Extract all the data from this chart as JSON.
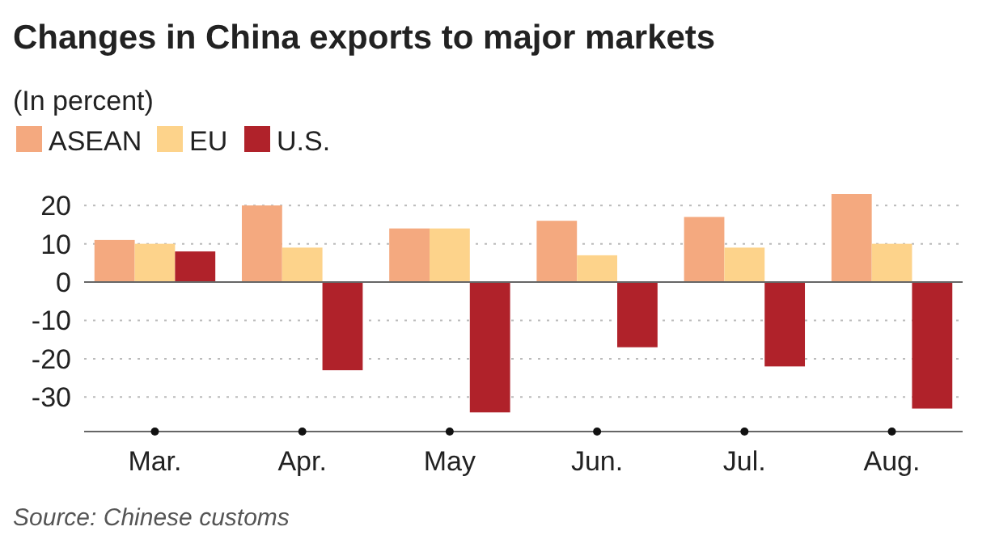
{
  "chart_data": {
    "type": "bar",
    "title": "Changes in China exports to major markets",
    "subtitle": "(In percent)",
    "categories": [
      "Mar.",
      "Apr.",
      "May",
      "Jun.",
      "Jul.",
      "Aug."
    ],
    "series": [
      {
        "name": "ASEAN",
        "color": "#f4a97f",
        "values": [
          11,
          20,
          14,
          16,
          17,
          23
        ]
      },
      {
        "name": "EU",
        "color": "#fdd38b",
        "values": [
          10,
          9,
          14,
          7,
          9,
          10
        ]
      },
      {
        "name": "U.S.",
        "color": "#b0222a",
        "values": [
          8,
          -23,
          -34,
          -17,
          -22,
          -33
        ]
      }
    ],
    "ylim": [
      -39,
      23
    ],
    "yticks": [
      -30,
      -20,
      -10,
      0,
      10,
      20
    ],
    "grid": "y",
    "legend": "top left",
    "annotations": [
      "Source: Chinese customs"
    ]
  }
}
